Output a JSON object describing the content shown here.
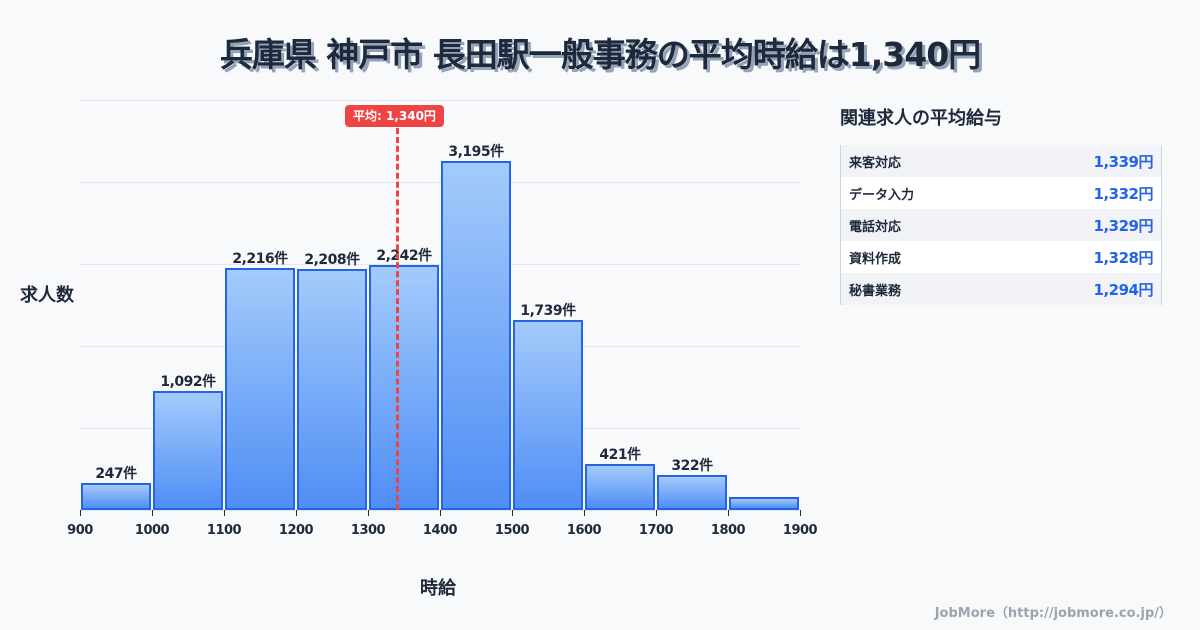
{
  "header": {
    "title": "兵庫県 神戸市 長田駅一般事務の平均時給は1,340円"
  },
  "chart": {
    "ylabel": "求人数",
    "xlabel": "時給",
    "avg_badge": "平均: 1,340円",
    "bar_labels": [
      "247件",
      "1,092件",
      "2,216件",
      "2,208件",
      "2,242件",
      "3,195件",
      "1,739件",
      "421件",
      "322件",
      ""
    ],
    "ticks": [
      "900",
      "1000",
      "1100",
      "1200",
      "1300",
      "1400",
      "1500",
      "1600",
      "1700",
      "1800",
      "1900"
    ]
  },
  "side": {
    "title": "関連求人の平均給与",
    "rows": [
      {
        "name": "来客対応",
        "value": "1,339円"
      },
      {
        "name": "データ入力",
        "value": "1,332円"
      },
      {
        "name": "電話対応",
        "value": "1,329円"
      },
      {
        "name": "資料作成",
        "value": "1,328円"
      },
      {
        "name": "秘書業務",
        "value": "1,294円"
      }
    ]
  },
  "footer": {
    "credit": "JobMore（http://jobmore.co.jp/）"
  },
  "colors": {
    "bar_fill_top": "#a3cbfb",
    "bar_fill_bottom": "#4f8ef5",
    "bar_border": "#2563eb",
    "average_line": "#ef4444",
    "side_value": "#2563eb"
  },
  "chart_data": {
    "type": "bar",
    "title": "兵庫県 神戸市 長田駅一般事務の平均時給は1,340円",
    "xlabel": "時給",
    "ylabel": "求人数",
    "bin_edges": [
      900,
      1000,
      1100,
      1200,
      1300,
      1400,
      1500,
      1600,
      1700,
      1800,
      1900
    ],
    "categories": [
      "900-1000",
      "1000-1100",
      "1100-1200",
      "1200-1300",
      "1300-1400",
      "1400-1500",
      "1500-1600",
      "1600-1700",
      "1700-1800",
      "1800-1900"
    ],
    "values": [
      247,
      1092,
      2216,
      2208,
      2242,
      3195,
      1739,
      421,
      322,
      120
    ],
    "value_labels": [
      "247件",
      "1,092件",
      "2,216件",
      "2,208件",
      "2,242件",
      "3,195件",
      "1,739件",
      "421件",
      "322件",
      null
    ],
    "ylim": [
      0,
      3750
    ],
    "grid": true,
    "annotations": [
      {
        "type": "vline",
        "x": 1340,
        "label": "平均: 1,340円",
        "color": "#ef4444",
        "style": "dashed"
      }
    ],
    "related_table": {
      "title": "関連求人の平均給与",
      "rows": [
        [
          "来客対応",
          1339
        ],
        [
          "データ入力",
          1332
        ],
        [
          "電話対応",
          1329
        ],
        [
          "資料作成",
          1328
        ],
        [
          "秘書業務",
          1294
        ]
      ]
    }
  }
}
